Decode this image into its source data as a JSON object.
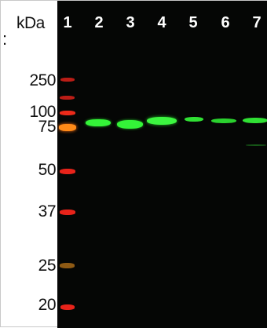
{
  "unit_label": "kDa",
  "side_mark": ":",
  "lanes": [
    "1",
    "2",
    "3",
    "4",
    "5",
    "6",
    "7"
  ],
  "markers": [
    "250",
    "100",
    "75",
    "50",
    "37",
    "25",
    "20"
  ],
  "colors": {
    "background": "#050605",
    "ladder": "#e8231a",
    "ladder_75": "#ff8a18",
    "ladder_25": "#a86a18",
    "band": "#34f438",
    "lane_text": "#ffffff"
  }
}
